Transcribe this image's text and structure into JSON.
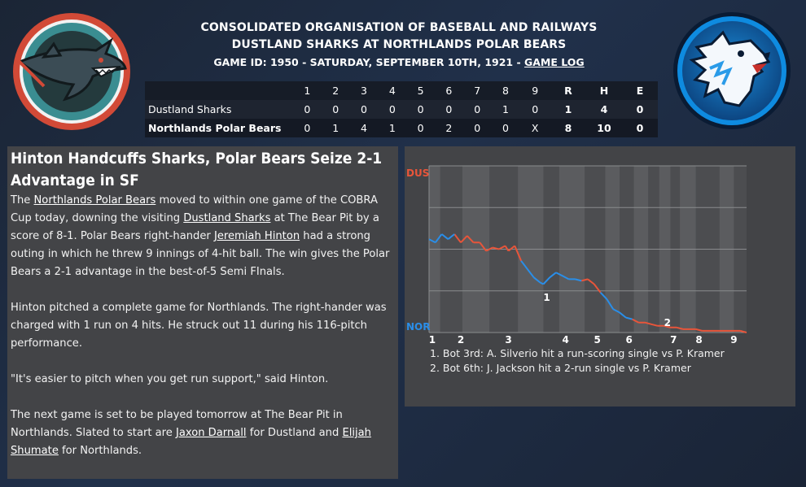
{
  "header": {
    "league": "CONSOLIDATED ORGANISATION OF BASEBALL AND RAILWAYS",
    "matchup": "DUSTLAND SHARKS AT NORTHLANDS POLAR BEARS",
    "game_id_text": "GAME ID: 1950 - SATURDAY, SEPTEMBER 10TH, 1921 - ",
    "game_log_link": "GAME LOG"
  },
  "logos": {
    "away": "shark-logo",
    "home": "polar-bear-logo"
  },
  "linescore": {
    "innings": [
      "1",
      "2",
      "3",
      "4",
      "5",
      "6",
      "7",
      "8",
      "9"
    ],
    "totals_headers": [
      "R",
      "H",
      "E"
    ],
    "teams": [
      {
        "name": "Dustland Sharks",
        "innings": [
          "0",
          "0",
          "0",
          "0",
          "0",
          "0",
          "0",
          "1",
          "0"
        ],
        "r": "1",
        "h": "4",
        "e": "0"
      },
      {
        "name": "Northlands Polar Bears",
        "innings": [
          "0",
          "1",
          "4",
          "1",
          "0",
          "2",
          "0",
          "0",
          "X"
        ],
        "r": "8",
        "h": "10",
        "e": "0"
      }
    ]
  },
  "story": {
    "headline": "Hinton Handcuffs Sharks, Polar Bears Seize 2-1 Advantage in SF",
    "p1": [
      "The ",
      "Northlands Polar Bears",
      " moved to within one game of the COBRA Cup today, downing the visiting ",
      "Dustland Sharks",
      " at The Bear Pit by a score of 8-1. Polar Bears right-hander ",
      "Jeremiah Hinton",
      " had a strong outing in which he threw 9 innings of 4-hit ball. The win gives the Polar Bears a 2-1 advantage in the best-of-5 Semi FInals."
    ],
    "p2": "Hinton pitched a complete game for Northlands. The right-hander was charged with 1 run on 4 hits. He struck out 11 during his 116-pitch performance.",
    "p3": "\"It's easier to pitch when you get run support,\" said Hinton.",
    "p4": [
      "The next game is set to be played tomorrow at The Bear Pit in Northlands. Slated to start are ",
      "Jaxon Darnall",
      " for Dustland and ",
      "Elijah Shumate",
      " for Northlands."
    ]
  },
  "win_prob": {
    "top_label": "DUS",
    "bottom_label": "NOR",
    "inning_labels": [
      "1",
      "2",
      "3",
      "4",
      "5",
      "6",
      "7",
      "8",
      "9"
    ],
    "markers": [
      "1",
      "2"
    ],
    "notes": [
      "1. Bot 3rd: A. Silverio hit a run-scoring single vs P. Kramer",
      "2. Bot 6th: J. Jackson hit a 2-run single vs P. Kramer"
    ],
    "colors": {
      "dus": "#e8553a",
      "nor": "#2a8ee8"
    }
  },
  "chart_data": {
    "type": "line",
    "x_unit": "play index (0-100 over game)",
    "y_unit": "Northlands win probability (%)",
    "ylim": [
      0,
      100
    ],
    "points": [
      [
        0,
        44
      ],
      [
        2,
        46
      ],
      [
        4,
        41
      ],
      [
        6,
        44
      ],
      [
        8,
        41
      ],
      [
        10,
        46
      ],
      [
        12,
        42
      ],
      [
        14,
        46
      ],
      [
        16,
        46
      ],
      [
        18,
        51
      ],
      [
        20,
        49
      ],
      [
        22,
        50
      ],
      [
        24,
        48
      ],
      [
        25,
        51
      ],
      [
        27,
        48
      ],
      [
        29,
        57
      ],
      [
        31,
        62
      ],
      [
        33,
        67
      ],
      [
        35,
        70
      ],
      [
        36,
        71
      ],
      [
        38,
        67
      ],
      [
        40,
        64
      ],
      [
        42,
        66
      ],
      [
        44,
        68
      ],
      [
        46,
        68
      ],
      [
        48,
        69
      ],
      [
        50,
        68
      ],
      [
        52,
        71
      ],
      [
        54,
        76
      ],
      [
        56,
        80
      ],
      [
        58,
        86
      ],
      [
        60,
        88
      ],
      [
        62,
        91
      ],
      [
        64,
        92
      ],
      [
        66,
        94
      ],
      [
        68,
        94
      ],
      [
        70,
        95
      ],
      [
        72,
        96
      ],
      [
        74,
        96
      ],
      [
        76,
        97
      ],
      [
        78,
        97
      ],
      [
        80,
        98
      ],
      [
        82,
        98
      ],
      [
        84,
        98
      ],
      [
        86,
        99
      ],
      [
        88,
        99
      ],
      [
        90,
        99
      ],
      [
        92,
        99
      ],
      [
        94,
        99
      ],
      [
        96,
        99
      ],
      [
        98,
        99
      ],
      [
        100,
        100
      ]
    ]
  }
}
